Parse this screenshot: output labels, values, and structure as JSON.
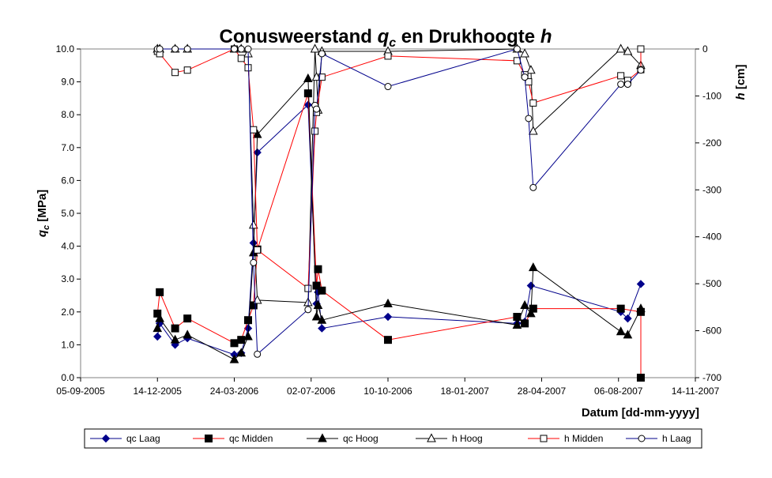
{
  "chart_data": {
    "type": "line",
    "title_parts": [
      "Conusweerstand ",
      "q",
      "c",
      "  en Drukhoogte ",
      "h"
    ],
    "ylabel_left_parts": [
      "q",
      "c",
      " [MPa]"
    ],
    "ylabel_right_parts": [
      "h",
      " [cm]"
    ],
    "xlabel": "Datum [dd-mm-yyyy]",
    "x_axis": {
      "min": "2005-09-05",
      "max": "2007-11-14",
      "ticks": [
        "2005-09-05",
        "2005-12-14",
        "2006-03-24",
        "2006-07-02",
        "2006-10-10",
        "2007-01-18",
        "2007-04-28",
        "2007-08-06",
        "2007-11-14"
      ],
      "tick_labels": [
        "05-09-2005",
        "14-12-2005",
        "24-03-2006",
        "02-07-2006",
        "10-10-2006",
        "18-01-2007",
        "28-04-2007",
        "06-08-2007",
        "14-11-2007"
      ]
    },
    "y_left": {
      "min": 0,
      "max": 10,
      "step": 1,
      "tick_labels": [
        "0.0",
        "1.0",
        "2.0",
        "3.0",
        "4.0",
        "5.0",
        "6.0",
        "7.0",
        "8.0",
        "9.0",
        "10.0"
      ]
    },
    "y_right": {
      "min": -700,
      "max": 0,
      "step": 100,
      "tick_labels": [
        "-700",
        "-600",
        "-500",
        "-400",
        "-300",
        "-200",
        "-100",
        "0"
      ]
    },
    "grid": false,
    "legend_position": "bottom",
    "series": [
      {
        "name": "qc Laag",
        "axis": "left",
        "color": "#00008B",
        "marker": "diamond-filled",
        "points": [
          [
            "2005-12-14",
            1.25
          ],
          [
            "2005-12-17",
            1.65
          ],
          [
            "2006-01-06",
            1.0
          ],
          [
            "2006-01-22",
            1.2
          ],
          [
            "2006-03-24",
            0.7
          ],
          [
            "2006-04-02",
            0.75
          ],
          [
            "2006-04-11",
            1.5
          ],
          [
            "2006-04-18",
            4.1
          ],
          [
            "2006-04-23",
            6.85
          ],
          [
            "2006-06-28",
            8.3
          ],
          [
            "2006-07-09",
            2.25
          ],
          [
            "2006-07-11",
            2.6
          ],
          [
            "2006-07-16",
            1.5
          ],
          [
            "2006-10-10",
            1.85
          ],
          [
            "2007-03-27",
            1.65
          ],
          [
            "2007-04-06",
            1.7
          ],
          [
            "2007-04-14",
            2.8
          ],
          [
            "2007-08-09",
            2.0
          ],
          [
            "2007-08-18",
            1.8
          ],
          [
            "2007-09-04",
            2.85
          ]
        ]
      },
      {
        "name": "qc Midden",
        "axis": "left",
        "color": "#FF0000",
        "marker": "square-filled",
        "points": [
          [
            "2005-12-14",
            1.95
          ],
          [
            "2005-12-17",
            2.6
          ],
          [
            "2006-01-06",
            1.5
          ],
          [
            "2006-01-22",
            1.8
          ],
          [
            "2006-03-24",
            1.05
          ],
          [
            "2006-04-02",
            1.15
          ],
          [
            "2006-04-11",
            1.75
          ],
          [
            "2006-04-18",
            2.2
          ],
          [
            "2006-04-23",
            3.9
          ],
          [
            "2006-06-28",
            8.65
          ],
          [
            "2006-07-09",
            2.8
          ],
          [
            "2006-07-11",
            3.3
          ],
          [
            "2006-07-16",
            2.65
          ],
          [
            "2006-10-10",
            1.15
          ],
          [
            "2007-03-27",
            1.85
          ],
          [
            "2007-04-06",
            1.65
          ],
          [
            "2007-04-17",
            2.1
          ],
          [
            "2007-08-09",
            2.1
          ],
          [
            "2007-09-04",
            2.0
          ],
          [
            "2007-09-04",
            0.0
          ]
        ]
      },
      {
        "name": "qc Hoog",
        "axis": "left",
        "color": "#000000",
        "marker": "triangle-filled",
        "points": [
          [
            "2005-12-14",
            1.5
          ],
          [
            "2005-12-17",
            1.8
          ],
          [
            "2006-01-06",
            1.15
          ],
          [
            "2006-01-22",
            1.3
          ],
          [
            "2006-03-24",
            0.55
          ],
          [
            "2006-04-02",
            0.75
          ],
          [
            "2006-04-11",
            1.25
          ],
          [
            "2006-04-18",
            3.8
          ],
          [
            "2006-04-23",
            7.4
          ],
          [
            "2006-06-28",
            9.1
          ],
          [
            "2006-07-09",
            1.85
          ],
          [
            "2006-07-11",
            2.2
          ],
          [
            "2006-07-16",
            1.75
          ],
          [
            "2006-10-10",
            2.25
          ],
          [
            "2007-03-27",
            1.6
          ],
          [
            "2007-04-06",
            2.2
          ],
          [
            "2007-04-14",
            1.95
          ],
          [
            "2007-04-17",
            3.35
          ],
          [
            "2007-08-09",
            1.4
          ],
          [
            "2007-08-18",
            1.3
          ],
          [
            "2007-09-04",
            2.1
          ]
        ]
      },
      {
        "name": "h Hoog",
        "axis": "right",
        "color": "#000000",
        "marker": "triangle-open",
        "points": [
          [
            "2005-12-14",
            0
          ],
          [
            "2005-12-17",
            0
          ],
          [
            "2006-01-06",
            0
          ],
          [
            "2006-01-22",
            0
          ],
          [
            "2006-03-24",
            0
          ],
          [
            "2006-04-02",
            0
          ],
          [
            "2006-04-11",
            -10
          ],
          [
            "2006-04-18",
            -375
          ],
          [
            "2006-04-23",
            -535
          ],
          [
            "2006-06-28",
            -540
          ],
          [
            "2006-07-07",
            0
          ],
          [
            "2006-07-09",
            -60
          ],
          [
            "2006-07-11",
            -130
          ],
          [
            "2006-07-16",
            -5
          ],
          [
            "2006-10-10",
            -5
          ],
          [
            "2007-03-27",
            0
          ],
          [
            "2007-04-06",
            -10
          ],
          [
            "2007-04-14",
            -45
          ],
          [
            "2007-04-17",
            -175
          ],
          [
            "2007-08-09",
            0
          ],
          [
            "2007-08-18",
            -5
          ],
          [
            "2007-09-04",
            -35
          ]
        ]
      },
      {
        "name": "h Midden",
        "axis": "right",
        "color": "#FF0000",
        "marker": "square-open",
        "points": [
          [
            "2005-12-14",
            -5
          ],
          [
            "2005-12-17",
            -10
          ],
          [
            "2006-01-06",
            -50
          ],
          [
            "2006-01-22",
            -45
          ],
          [
            "2006-03-24",
            0
          ],
          [
            "2006-04-02",
            -20
          ],
          [
            "2006-04-11",
            -40
          ],
          [
            "2006-04-18",
            -172
          ],
          [
            "2006-04-23",
            -428
          ],
          [
            "2006-06-28",
            -510
          ],
          [
            "2006-07-07",
            -175
          ],
          [
            "2006-07-09",
            -135
          ],
          [
            "2006-07-16",
            -60
          ],
          [
            "2006-10-10",
            -15
          ],
          [
            "2007-03-27",
            -25
          ],
          [
            "2007-04-06",
            -55
          ],
          [
            "2007-04-11",
            -70
          ],
          [
            "2007-04-17",
            -115
          ],
          [
            "2007-08-09",
            -57
          ],
          [
            "2007-08-18",
            -67
          ],
          [
            "2007-09-04",
            -44
          ],
          [
            "2007-09-04",
            0
          ]
        ]
      },
      {
        "name": "h Laag",
        "axis": "right",
        "color": "#00008B",
        "marker": "circle-open",
        "points": [
          [
            "2005-12-14",
            0
          ],
          [
            "2005-12-17",
            0
          ],
          [
            "2006-01-06",
            0
          ],
          [
            "2006-01-22",
            0
          ],
          [
            "2006-03-24",
            0
          ],
          [
            "2006-04-02",
            0
          ],
          [
            "2006-04-11",
            0
          ],
          [
            "2006-04-18",
            -455
          ],
          [
            "2006-04-23",
            -650
          ],
          [
            "2006-06-28",
            -555
          ],
          [
            "2006-07-07",
            -120
          ],
          [
            "2006-07-09",
            -128
          ],
          [
            "2006-07-16",
            -10
          ],
          [
            "2006-10-10",
            -80
          ],
          [
            "2007-03-27",
            0
          ],
          [
            "2007-04-06",
            -60
          ],
          [
            "2007-04-11",
            -148
          ],
          [
            "2007-04-17",
            -295
          ],
          [
            "2007-08-09",
            -75
          ],
          [
            "2007-08-18",
            -75
          ],
          [
            "2007-09-04",
            -45
          ]
        ]
      }
    ]
  }
}
